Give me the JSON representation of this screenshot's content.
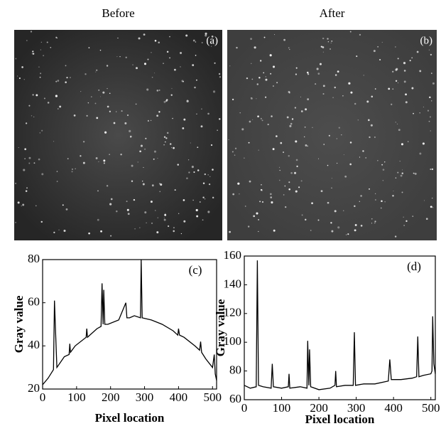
{
  "images": [
    {
      "title": "Before",
      "label": "(a)"
    },
    {
      "title": "After",
      "label": "(b)"
    }
  ],
  "chart_data": [
    {
      "type": "line",
      "annotation": "(c)",
      "x_label": "Pixel location",
      "y_label": "Gray value",
      "xlim": [
        0,
        512
      ],
      "ylim": [
        20,
        80
      ],
      "xticks": [
        0,
        100,
        200,
        300,
        400,
        500
      ],
      "yticks": [
        20,
        40,
        60,
        80
      ],
      "series": [
        {
          "name": "Before",
          "color": "#000000",
          "x": [
            0,
            16,
            32,
            35,
            38,
            42,
            64,
            78,
            80,
            82,
            96,
            128,
            130,
            132,
            160,
            172,
            175,
            178,
            180,
            183,
            192,
            224,
            245,
            248,
            256,
            270,
            288,
            290,
            293,
            320,
            352,
            384,
            398,
            400,
            403,
            416,
            448,
            462,
            465,
            468,
            480,
            500,
            505,
            508,
            512
          ],
          "values": [
            22,
            25,
            29,
            61,
            47,
            30,
            35,
            36,
            41,
            37,
            40,
            44,
            48,
            44,
            48,
            49,
            69,
            50,
            66,
            50,
            50,
            52,
            60,
            53,
            53,
            54,
            53,
            80,
            53,
            52,
            50,
            47,
            45,
            48,
            45,
            44,
            40,
            38,
            42,
            37,
            34,
            30,
            36,
            27,
            24
          ]
        }
      ]
    },
    {
      "type": "line",
      "annotation": "(d)",
      "x_label": "Pixel location",
      "y_label": "Gray value",
      "xlim": [
        0,
        512
      ],
      "ylim": [
        60,
        160
      ],
      "xticks": [
        0,
        100,
        200,
        300,
        400,
        500
      ],
      "yticks": [
        60,
        80,
        100,
        120,
        140,
        160
      ],
      "series": [
        {
          "name": "After",
          "color": "#000000",
          "x": [
            0,
            16,
            32,
            35,
            38,
            50,
            72,
            75,
            78,
            100,
            118,
            120,
            122,
            150,
            168,
            170,
            173,
            175,
            178,
            200,
            230,
            243,
            245,
            247,
            270,
            292,
            295,
            298,
            320,
            350,
            386,
            390,
            394,
            420,
            450,
            462,
            465,
            468,
            480,
            500,
            503,
            505,
            508,
            512
          ],
          "values": [
            70,
            68,
            69,
            157,
            70,
            69,
            68,
            85,
            69,
            68,
            69,
            78,
            68,
            69,
            68,
            101,
            70,
            95,
            69,
            67,
            68,
            70,
            80,
            69,
            70,
            70,
            107,
            70,
            71,
            71,
            73,
            88,
            74,
            74,
            75,
            76,
            104,
            76,
            77,
            78,
            80,
            118,
            85,
            78
          ]
        }
      ]
    }
  ]
}
